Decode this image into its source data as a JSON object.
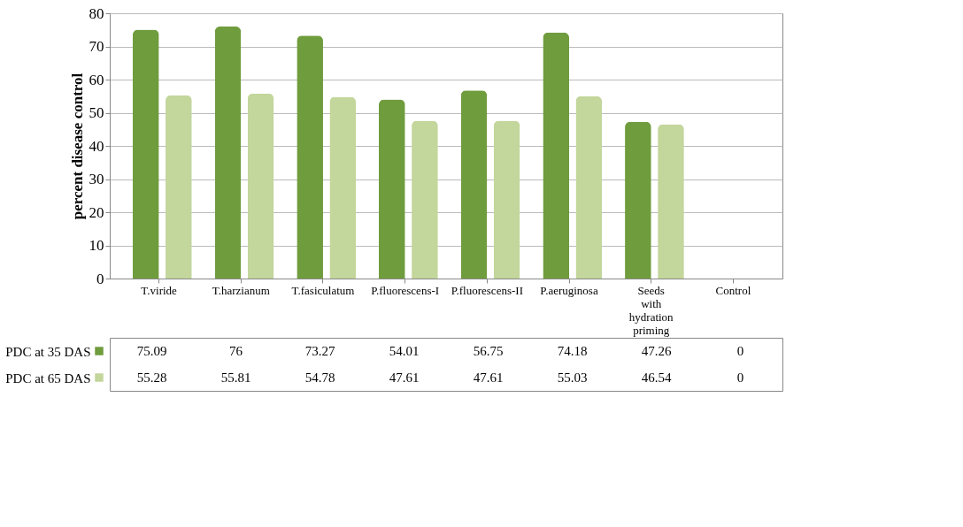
{
  "chart_data": {
    "type": "bar",
    "ylabel": "percent disease control",
    "categories": [
      "T.viride",
      "T.harzianum",
      "T.fasiculatum",
      "P.fluorescens-I",
      "P.fluorescens-II",
      "P.aeruginosa",
      "Seeds with hydration priming",
      "Control"
    ],
    "series": [
      {
        "name": "PDC at 35 DAS",
        "color": "#6f9c3d",
        "values": [
          75.09,
          76,
          73.27,
          54.01,
          56.75,
          74.18,
          47.26,
          0
        ]
      },
      {
        "name": "PDC at 65 DAS",
        "color": "#c3d69b",
        "values": [
          55.28,
          55.81,
          54.78,
          47.61,
          47.61,
          55.03,
          46.54,
          0
        ]
      }
    ],
    "ylim": [
      0,
      80
    ],
    "yticks": [
      0,
      10,
      20,
      30,
      40,
      50,
      60,
      70,
      80
    ],
    "grid": "y",
    "legend": "bottom",
    "data_labels": true
  }
}
